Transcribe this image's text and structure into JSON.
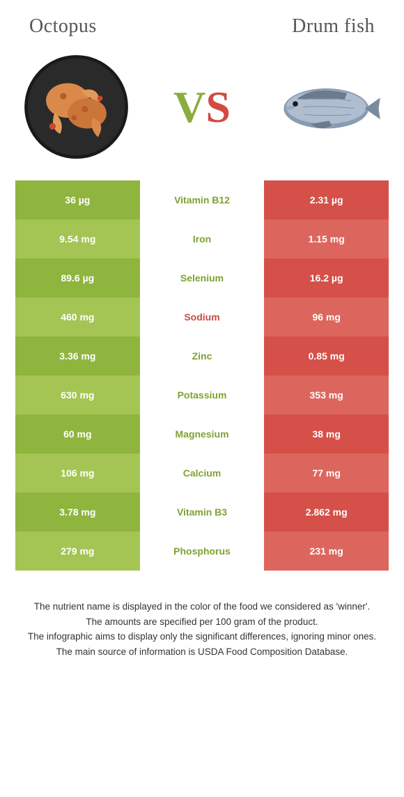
{
  "left_name": "Octopus",
  "right_name": "Drum fish",
  "vs_left": "V",
  "vs_right": "S",
  "colors": {
    "green_dark": "#8fb53f",
    "green_light": "#a4c554",
    "red_dark": "#d55048",
    "red_light": "#dc665e",
    "mid_green_text": "#7fa233",
    "mid_red_text": "#c94b43"
  },
  "rows": [
    {
      "left": "36 µg",
      "label": "Vitamin B12",
      "right": "2.31 µg",
      "winner": "left"
    },
    {
      "left": "9.54 mg",
      "label": "Iron",
      "right": "1.15 mg",
      "winner": "left"
    },
    {
      "left": "89.6 µg",
      "label": "Selenium",
      "right": "16.2 µg",
      "winner": "left"
    },
    {
      "left": "460 mg",
      "label": "Sodium",
      "right": "96 mg",
      "winner": "right"
    },
    {
      "left": "3.36 mg",
      "label": "Zinc",
      "right": "0.85 mg",
      "winner": "left"
    },
    {
      "left": "630 mg",
      "label": "Potassium",
      "right": "353 mg",
      "winner": "left"
    },
    {
      "left": "60 mg",
      "label": "Magnesium",
      "right": "38 mg",
      "winner": "left"
    },
    {
      "left": "106 mg",
      "label": "Calcium",
      "right": "77 mg",
      "winner": "left"
    },
    {
      "left": "3.78 mg",
      "label": "Vitamin B3",
      "right": "2.862 mg",
      "winner": "left"
    },
    {
      "left": "279 mg",
      "label": "Phosphorus",
      "right": "231 mg",
      "winner": "left"
    }
  ],
  "footnotes": [
    "The nutrient name is displayed in the color of the food we considered as 'winner'.",
    "The amounts are specified per 100 gram of the product.",
    "The infographic aims to display only the significant differences, ignoring minor ones.",
    "The main source of information is USDA Food Composition Database."
  ]
}
